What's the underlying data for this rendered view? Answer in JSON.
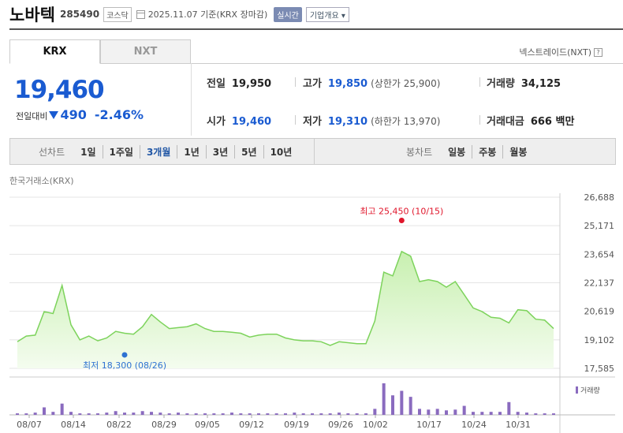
{
  "header": {
    "name": "노바텍",
    "code": "285490",
    "market": "코스닥",
    "date": "2025.11.07  기준(KRX 장마감)",
    "realtime": "실시간",
    "overview": "기업개요 ▾"
  },
  "tabs": [
    {
      "label": "KRX",
      "active": true
    },
    {
      "label": "NXT",
      "active": false
    }
  ],
  "nxt_link": "넥스트레이드(NXT)",
  "nxt_help": "?",
  "quote": {
    "price": "19,460",
    "change_label": "전일대비",
    "change_amount": "490",
    "change_pct": "-2.46%",
    "direction": "down",
    "colors": {
      "down": "#1a5bd1",
      "up": "#d0021b"
    }
  },
  "stats": {
    "prev": {
      "label": "전일",
      "value": "19,950"
    },
    "high": {
      "label": "고가",
      "value": "19,850",
      "sub": "(상한가 25,900)"
    },
    "volume": {
      "label": "거래량",
      "value": "34,125"
    },
    "open": {
      "label": "시가",
      "value": "19,460"
    },
    "low": {
      "label": "저가",
      "value": "19,310",
      "sub": "(하한가 13,970)"
    },
    "amount": {
      "label": "거래대금",
      "value": "666 백만"
    }
  },
  "periods": {
    "title": "선차트",
    "items": [
      "1일",
      "1주일",
      "3개월",
      "1년",
      "3년",
      "5년",
      "10년"
    ],
    "selected": "3개월"
  },
  "candles": {
    "title": "봉차트",
    "items": [
      "일봉",
      "주봉",
      "월봉"
    ]
  },
  "chart_source": "한국거래소(KRX)",
  "chart_data": {
    "type": "area",
    "yticks": [
      "26,688",
      "25,171",
      "23,654",
      "22,137",
      "20,619",
      "19,102",
      "17,585"
    ],
    "ylim": [
      17585,
      26688
    ],
    "xticks": [
      "08/07",
      "08/14",
      "08/22",
      "08/29",
      "09/05",
      "09/12",
      "09/19",
      "09/26",
      "10/02",
      "10/17",
      "10/24",
      "10/31"
    ],
    "series": [
      {
        "values": [
          19000,
          19300,
          19350,
          20600,
          20500,
          22000,
          19900,
          19100,
          19300,
          19050,
          19200,
          19550,
          19450,
          19400,
          19800,
          20450,
          20050,
          19700,
          19750,
          19800,
          19950,
          19700,
          19550,
          19550,
          19500,
          19450,
          19250,
          19350,
          19400,
          19400,
          19200,
          19100,
          19050,
          19050,
          19000,
          18800,
          19000,
          18950,
          18900,
          18900,
          20100,
          22700,
          22500,
          23800,
          23550,
          22200,
          22300,
          22200,
          21900,
          22200,
          21500,
          20800,
          20600,
          20300,
          20250,
          20000,
          20700,
          20650,
          20200,
          20150,
          19700
        ]
      }
    ],
    "annotations": {
      "high": {
        "label": "최고  25,450  (10/15)",
        "value": 25450
      },
      "low": {
        "label": "최저  18,300  (08/26)",
        "value": 18300
      }
    },
    "volume": [
      2,
      2,
      3,
      10,
      4,
      15,
      4,
      2,
      2,
      2,
      3,
      5,
      3,
      3,
      5,
      4,
      3,
      2,
      3,
      2,
      2,
      2,
      2,
      2,
      3,
      2,
      2,
      2,
      2,
      2,
      2,
      3,
      2,
      2,
      2,
      2,
      3,
      2,
      2,
      2,
      8,
      42,
      26,
      32,
      24,
      8,
      7,
      8,
      6,
      7,
      12,
      4,
      4,
      4,
      4,
      17,
      4,
      3,
      2,
      2,
      2
    ],
    "volume_label": "거래량",
    "colors": {
      "line": "#7dd35c",
      "fill": "#c8f0b0",
      "volume": "#8a6bbf",
      "high": "#e0162b",
      "low": "#2e72d2"
    }
  }
}
